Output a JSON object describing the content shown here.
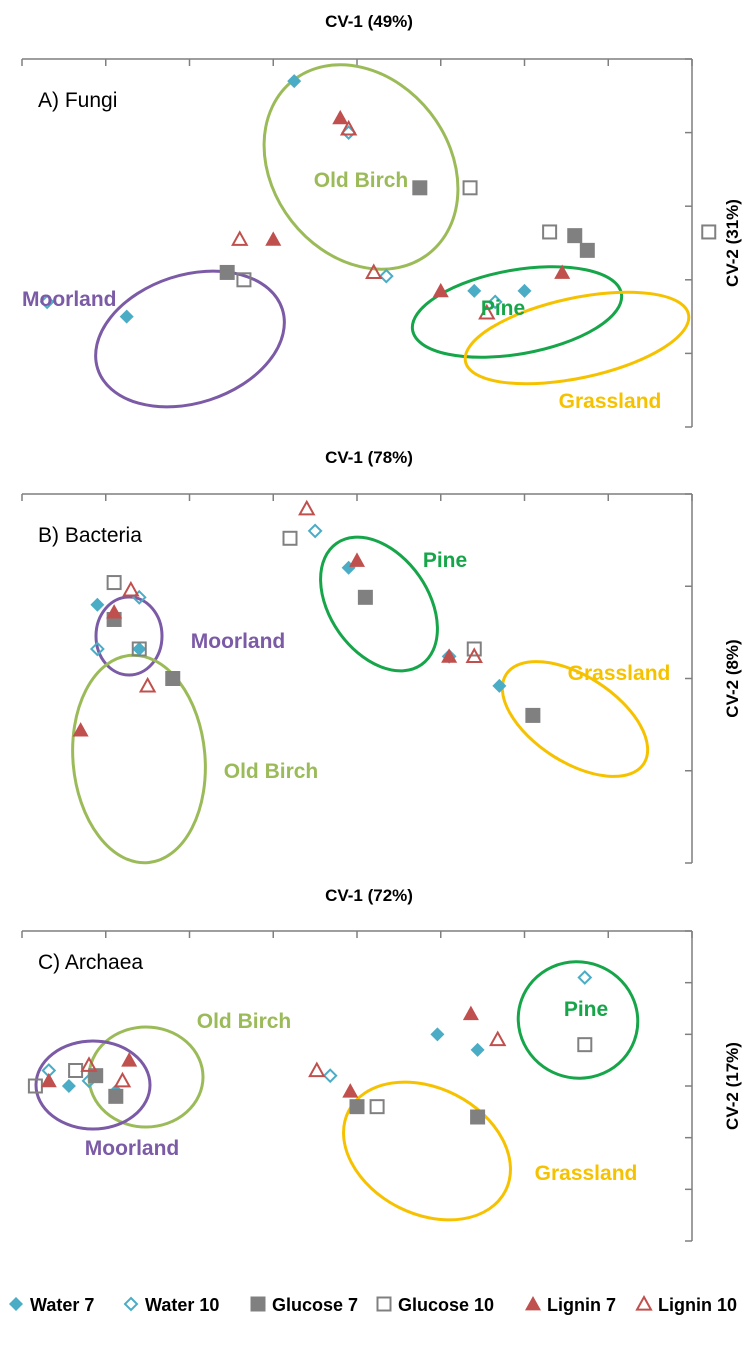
{
  "colors": {
    "water": "#4bacc6",
    "glucose": "#808080",
    "lignin": "#c0504d",
    "Moorland": "#7b5aa6",
    "Old Birch": "#9bbb59",
    "Pine": "#17a54a",
    "Grassland": "#f6c200",
    "axis": "#7f7f7f"
  },
  "legend": [
    {
      "label": "Water 7",
      "marker": "diamond",
      "filled": true,
      "color": "water"
    },
    {
      "label": "Water 10",
      "marker": "diamond",
      "filled": false,
      "color": "water"
    },
    {
      "label": "Glucose 7",
      "marker": "square",
      "filled": true,
      "color": "glucose"
    },
    {
      "label": "Glucose 10",
      "marker": "square",
      "filled": false,
      "color": "glucose"
    },
    {
      "label": "Lignin 7",
      "marker": "triangle",
      "filled": true,
      "color": "lignin"
    },
    {
      "label": "Lignin 10",
      "marker": "triangle",
      "filled": false,
      "color": "lignin"
    }
  ],
  "chart_data": [
    {
      "type": "scatter",
      "title": "A) Fungi",
      "xlabel": "CV-1 (49%)",
      "ylabel": "CV-2 (31%)",
      "xlim": [
        -8,
        8
      ],
      "ylim": [
        -4,
        6
      ],
      "x_ticks": 8,
      "y_ticks": 5,
      "series": [
        {
          "name": "Water 7",
          "points": [
            [
              -1.5,
              5.4
            ],
            [
              -5.5,
              -1.0
            ],
            [
              2.8,
              -0.3
            ],
            [
              4.0,
              -0.3
            ]
          ]
        },
        {
          "name": "Water 10",
          "points": [
            [
              -0.2,
              4.0
            ],
            [
              -7.4,
              -0.6
            ],
            [
              0.7,
              0.1
            ],
            [
              3.3,
              -0.6
            ]
          ]
        },
        {
          "name": "Glucose 7",
          "points": [
            [
              1.5,
              2.5
            ],
            [
              -3.1,
              0.2
            ],
            [
              5.2,
              1.2
            ],
            [
              5.5,
              0.8
            ]
          ]
        },
        {
          "name": "Glucose 10",
          "points": [
            [
              2.7,
              2.5
            ],
            [
              -2.7,
              0.0
            ],
            [
              4.6,
              1.3
            ],
            [
              8.4,
              1.3
            ]
          ]
        },
        {
          "name": "Lignin 7",
          "points": [
            [
              -0.4,
              4.4
            ],
            [
              -2.0,
              1.1
            ],
            [
              2.0,
              -0.3
            ],
            [
              4.9,
              0.2
            ]
          ]
        },
        {
          "name": "Lignin 10",
          "points": [
            [
              -0.2,
              4.1
            ],
            [
              -2.8,
              1.1
            ],
            [
              0.4,
              0.2
            ],
            [
              3.1,
              -0.9
            ]
          ]
        }
      ],
      "groups": [
        {
          "name": "Old Birch",
          "label": "Old Birch"
        },
        {
          "name": "Moorland",
          "label": "Moorland"
        },
        {
          "name": "Pine",
          "label": "Pine"
        },
        {
          "name": "Grassland",
          "label": "Grassland"
        }
      ]
    },
    {
      "type": "scatter",
      "title": "B) Bacteria",
      "xlabel": "CV-1 (78%)",
      "ylabel": "CV-2 (8%)",
      "xlim": [
        -4,
        4
      ],
      "ylim": [
        -2,
        3
      ],
      "x_ticks": 8,
      "y_ticks": 4,
      "series": [
        {
          "name": "Water 7",
          "points": [
            [
              -3.1,
              1.5
            ],
            [
              -2.6,
              0.9
            ],
            [
              -0.1,
              2.0
            ],
            [
              1.7,
              0.4
            ]
          ]
        },
        {
          "name": "Water 10",
          "points": [
            [
              -2.6,
              1.6
            ],
            [
              -3.1,
              0.9
            ],
            [
              -0.5,
              2.5
            ],
            [
              1.1,
              0.8
            ]
          ]
        },
        {
          "name": "Glucose 7",
          "points": [
            [
              -2.9,
              1.3
            ],
            [
              -2.2,
              0.5
            ],
            [
              0.1,
              1.6
            ],
            [
              2.1,
              0.0
            ]
          ]
        },
        {
          "name": "Glucose 10",
          "points": [
            [
              -2.9,
              1.8
            ],
            [
              -2.6,
              0.9
            ],
            [
              -0.8,
              2.4
            ],
            [
              1.4,
              0.9
            ]
          ]
        },
        {
          "name": "Lignin 7",
          "points": [
            [
              -2.9,
              1.4
            ],
            [
              -3.3,
              -0.2
            ],
            [
              0.0,
              2.1
            ],
            [
              1.1,
              0.8
            ]
          ]
        },
        {
          "name": "Lignin 10",
          "points": [
            [
              -2.7,
              1.7
            ],
            [
              -2.5,
              0.4
            ],
            [
              -0.6,
              2.8
            ],
            [
              1.4,
              0.8
            ]
          ]
        }
      ],
      "groups": [
        {
          "name": "Moorland",
          "label": "Moorland"
        },
        {
          "name": "Old Birch",
          "label": "Old Birch"
        },
        {
          "name": "Pine",
          "label": "Pine"
        },
        {
          "name": "Grassland",
          "label": "Grassland"
        }
      ]
    },
    {
      "type": "scatter",
      "title": "C) Archaea",
      "xlabel": "CV-1 (72%)",
      "ylabel": "CV-2 (17%)",
      "xlim": [
        -4,
        6
      ],
      "ylim": [
        -3,
        3
      ],
      "x_ticks": 8,
      "y_ticks": 6,
      "series": [
        {
          "name": "Water 7",
          "points": [
            [
              -3.3,
              0.0
            ],
            [
              -2.6,
              -0.1
            ],
            [
              2.2,
              1.0
            ],
            [
              2.8,
              0.7
            ]
          ]
        },
        {
          "name": "Water 10",
          "points": [
            [
              -3.6,
              0.3
            ],
            [
              -3.0,
              0.1
            ],
            [
              0.6,
              0.2
            ],
            [
              4.4,
              2.1
            ]
          ]
        },
        {
          "name": "Glucose 7",
          "points": [
            [
              -2.9,
              0.2
            ],
            [
              -2.6,
              -0.2
            ],
            [
              1.0,
              -0.4
            ],
            [
              2.8,
              -0.6
            ]
          ]
        },
        {
          "name": "Glucose 10",
          "points": [
            [
              -3.8,
              0.0
            ],
            [
              -3.2,
              0.3
            ],
            [
              1.3,
              -0.4
            ],
            [
              4.4,
              0.8
            ]
          ]
        },
        {
          "name": "Lignin 7",
          "points": [
            [
              -3.6,
              0.1
            ],
            [
              -2.4,
              0.5
            ],
            [
              0.9,
              -0.1
            ],
            [
              2.7,
              1.4
            ]
          ]
        },
        {
          "name": "Lignin 10",
          "points": [
            [
              -3.0,
              0.4
            ],
            [
              -2.5,
              0.1
            ],
            [
              0.4,
              0.3
            ],
            [
              3.1,
              0.9
            ]
          ]
        }
      ],
      "groups": [
        {
          "name": "Old Birch",
          "label": "Old Birch"
        },
        {
          "name": "Moorland",
          "label": "Moorland"
        },
        {
          "name": "Pine",
          "label": "Pine"
        },
        {
          "name": "Grassland",
          "label": "Grassland"
        }
      ]
    }
  ]
}
